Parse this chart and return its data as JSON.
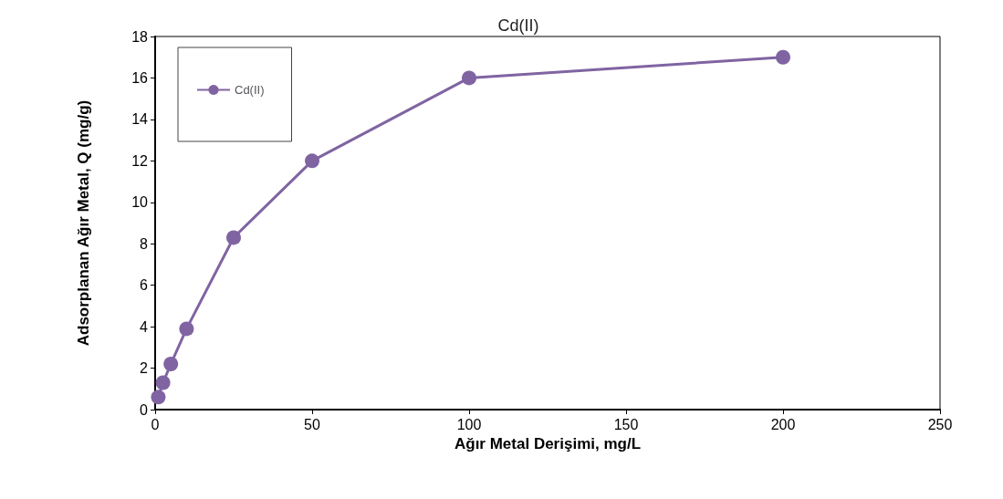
{
  "chart_data": {
    "type": "line",
    "title": "Cd(II)",
    "xlabel": "Ağır Metal Derişimi, mg/L",
    "ylabel": "Adsorplanan Ağır Metal, Q (mg/g)",
    "x": [
      1,
      2.5,
      5,
      10,
      25,
      50,
      100,
      200
    ],
    "series": [
      {
        "name": "Cd(II)",
        "color": "#8064a2",
        "values": [
          0.6,
          1.3,
          2.2,
          3.9,
          8.3,
          12,
          16,
          17
        ]
      }
    ],
    "xlim": [
      0,
      250
    ],
    "xticks": [
      0,
      50,
      100,
      150,
      200,
      250
    ],
    "ylim": [
      0,
      18
    ],
    "yticks": [
      0,
      2,
      4,
      6,
      8,
      10,
      12,
      14,
      16,
      18
    ],
    "grid": false,
    "legend": "top left",
    "marker": "circle",
    "line_style": "solid"
  }
}
